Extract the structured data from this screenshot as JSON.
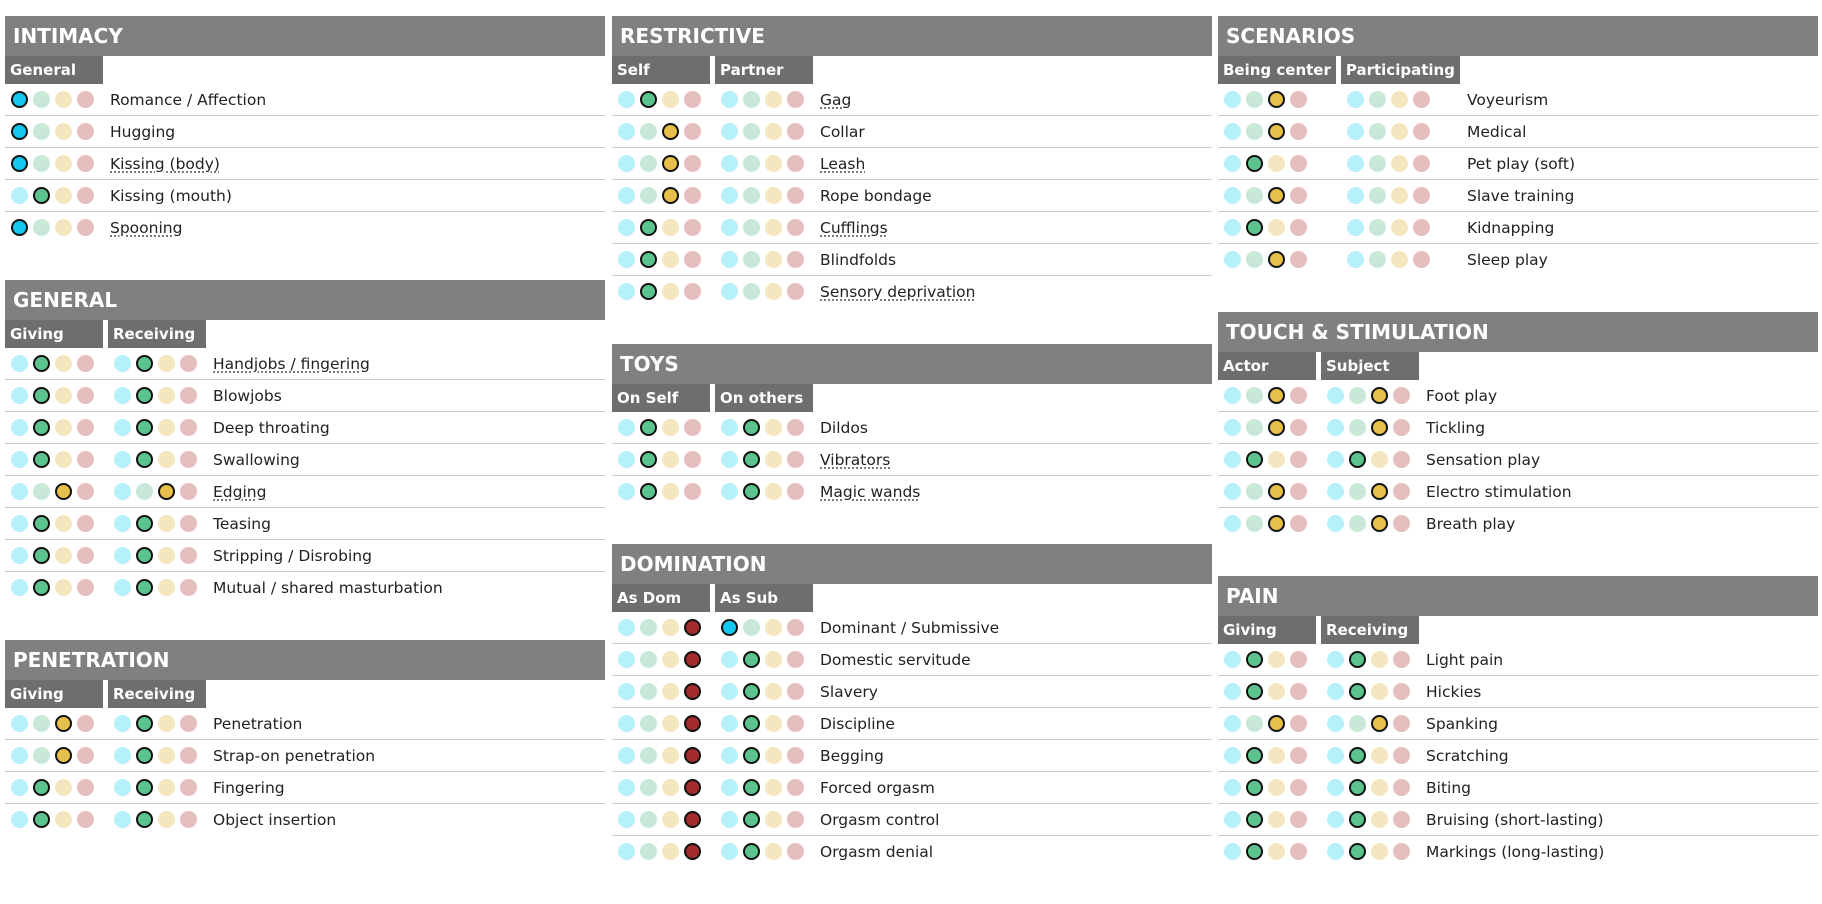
{
  "columns": [
    {
      "sections": [
        {
          "title": "INTIMACY",
          "headers": [
            "General"
          ],
          "items": [
            {
              "label": "Romance / Affection",
              "selected": [
                0
              ]
            },
            {
              "label": "Hugging",
              "selected": [
                0
              ]
            },
            {
              "label": "Kissing (body)",
              "selected": [
                0
              ],
              "tooltip": true
            },
            {
              "label": "Kissing (mouth)",
              "selected": [
                1
              ]
            },
            {
              "label": "Spooning",
              "selected": [
                0
              ],
              "tooltip": true
            }
          ]
        },
        {
          "title": "GENERAL",
          "headers": [
            "Giving",
            "Receiving"
          ],
          "items": [
            {
              "label": "Handjobs / fingering",
              "selected": [
                1,
                1
              ],
              "tooltip": true
            },
            {
              "label": "Blowjobs",
              "selected": [
                1,
                1
              ]
            },
            {
              "label": "Deep throating",
              "selected": [
                1,
                1
              ]
            },
            {
              "label": "Swallowing",
              "selected": [
                1,
                1
              ]
            },
            {
              "label": "Edging",
              "selected": [
                2,
                2
              ],
              "tooltip": true
            },
            {
              "label": "Teasing",
              "selected": [
                1,
                1
              ]
            },
            {
              "label": "Stripping / Disrobing",
              "selected": [
                1,
                1
              ]
            },
            {
              "label": "Mutual / shared masturbation",
              "selected": [
                1,
                1
              ]
            }
          ]
        },
        {
          "title": "PENETRATION",
          "headers": [
            "Giving",
            "Receiving"
          ],
          "items": [
            {
              "label": "Penetration",
              "selected": [
                2,
                1
              ]
            },
            {
              "label": "Strap-on penetration",
              "selected": [
                2,
                1
              ]
            },
            {
              "label": "Fingering",
              "selected": [
                1,
                1
              ]
            },
            {
              "label": "Object insertion",
              "selected": [
                1,
                1
              ]
            }
          ]
        }
      ]
    },
    {
      "sections": [
        {
          "title": "RESTRICTIVE",
          "headers": [
            "Self",
            "Partner"
          ],
          "items": [
            {
              "label": "Gag",
              "selected": [
                1,
                null
              ],
              "tooltip": true
            },
            {
              "label": "Collar",
              "selected": [
                2,
                null
              ]
            },
            {
              "label": "Leash",
              "selected": [
                2,
                null
              ],
              "tooltip": true
            },
            {
              "label": "Rope bondage",
              "selected": [
                2,
                null
              ]
            },
            {
              "label": "Cufflings",
              "selected": [
                1,
                null
              ],
              "tooltip": true
            },
            {
              "label": "Blindfolds",
              "selected": [
                1,
                null
              ]
            },
            {
              "label": "Sensory deprivation",
              "selected": [
                1,
                null
              ],
              "tooltip": true
            }
          ]
        },
        {
          "title": "TOYS",
          "headers": [
            "On Self",
            "On others"
          ],
          "items": [
            {
              "label": "Dildos",
              "selected": [
                1,
                1
              ]
            },
            {
              "label": "Vibrators",
              "selected": [
                1,
                1
              ],
              "tooltip": true
            },
            {
              "label": "Magic wands",
              "selected": [
                1,
                1
              ],
              "tooltip": true
            }
          ]
        },
        {
          "title": "DOMINATION",
          "headers": [
            "As Dom",
            "As Sub"
          ],
          "items": [
            {
              "label": "Dominant / Submissive",
              "selected": [
                3,
                0
              ]
            },
            {
              "label": "Domestic servitude",
              "selected": [
                3,
                1
              ]
            },
            {
              "label": "Slavery",
              "selected": [
                3,
                1
              ]
            },
            {
              "label": "Discipline",
              "selected": [
                3,
                1
              ]
            },
            {
              "label": "Begging",
              "selected": [
                3,
                1
              ]
            },
            {
              "label": "Forced orgasm",
              "selected": [
                3,
                1
              ]
            },
            {
              "label": "Orgasm control",
              "selected": [
                3,
                1
              ]
            },
            {
              "label": "Orgasm denial",
              "selected": [
                3,
                1
              ]
            }
          ]
        }
      ]
    },
    {
      "sections": [
        {
          "title": "SCENARIOS",
          "headers": [
            "Being center",
            "Participating"
          ],
          "items": [
            {
              "label": "Voyeurism",
              "selected": [
                2,
                null
              ]
            },
            {
              "label": "Medical",
              "selected": [
                2,
                null
              ]
            },
            {
              "label": "Pet play (soft)",
              "selected": [
                1,
                null
              ]
            },
            {
              "label": "Slave training",
              "selected": [
                2,
                null
              ]
            },
            {
              "label": "Kidnapping",
              "selected": [
                1,
                null
              ]
            },
            {
              "label": "Sleep play",
              "selected": [
                2,
                null
              ]
            }
          ]
        },
        {
          "title": "TOUCH & STIMULATION",
          "headers": [
            "Actor",
            "Subject"
          ],
          "items": [
            {
              "label": "Foot play",
              "selected": [
                2,
                2
              ]
            },
            {
              "label": "Tickling",
              "selected": [
                2,
                2
              ]
            },
            {
              "label": "Sensation play",
              "selected": [
                1,
                1
              ]
            },
            {
              "label": "Electro stimulation",
              "selected": [
                2,
                2
              ]
            },
            {
              "label": "Breath play",
              "selected": [
                2,
                2
              ]
            }
          ]
        },
        {
          "title": "PAIN",
          "headers": [
            "Giving",
            "Receiving"
          ],
          "items": [
            {
              "label": "Light pain",
              "selected": [
                1,
                1
              ]
            },
            {
              "label": "Hickies",
              "selected": [
                1,
                1
              ]
            },
            {
              "label": "Spanking",
              "selected": [
                2,
                2
              ]
            },
            {
              "label": "Scratching",
              "selected": [
                1,
                1
              ]
            },
            {
              "label": "Biting",
              "selected": [
                1,
                1
              ]
            },
            {
              "label": "Bruising (short-lasting)",
              "selected": [
                1,
                1
              ]
            },
            {
              "label": "Markings (long-lasting)",
              "selected": [
                1,
                1
              ]
            }
          ]
        }
      ]
    }
  ]
}
